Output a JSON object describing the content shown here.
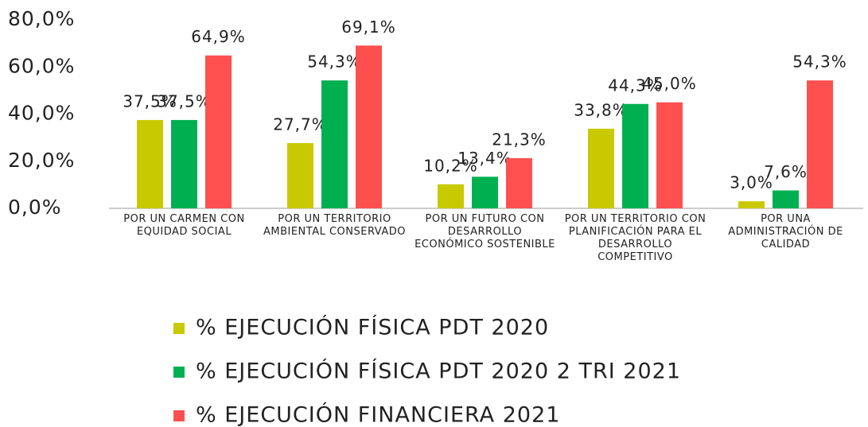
{
  "chart_data": {
    "type": "bar",
    "categories": [
      "POR UN CARMEN CON EQUIDAD SOCIAL",
      "POR UN TERRITORIO AMBIENTAL CONSERVADO",
      "POR UN FUTURO CON DESARROLLO ECONÓMICO SOSTENIBLE",
      "POR UN TERRITORIO CON PLANIFICACIÓN PARA EL DESARROLLO COMPETITIVO",
      "POR UNA ADMINISTRACIÓN DE CALIDAD"
    ],
    "series": [
      {
        "name": "% EJECUCIÓN FÍSICA PDT 2020",
        "color": "#c9c900",
        "values": [
          37.5,
          27.7,
          10.2,
          33.8,
          3.0
        ],
        "value_labels": [
          "37,5%",
          "27,7%",
          "10,2%",
          "33,8%",
          "3,0%"
        ]
      },
      {
        "name": "% EJECUCIÓN FÍSICA PDT 2020 2 TRI 2021",
        "color": "#00b050",
        "values": [
          37.5,
          54.3,
          13.4,
          44.3,
          7.6
        ],
        "value_labels": [
          "37,5%",
          "54,3%",
          "13,4%",
          "44,3%",
          "7,6%"
        ]
      },
      {
        "name": "% EJECUCIÓN FINANCIERA 2021",
        "color": "#ff5050",
        "values": [
          64.9,
          69.1,
          21.3,
          45.0,
          54.3
        ],
        "value_labels": [
          "64,9%",
          "69,1%",
          "21,3%",
          "45,0%",
          "54,3%"
        ]
      }
    ],
    "ylim": [
      0,
      80
    ],
    "yticks": [
      {
        "value": 0,
        "label": "0,0%"
      },
      {
        "value": 20,
        "label": "20,0%"
      },
      {
        "value": 40,
        "label": "40,0%"
      },
      {
        "value": 60,
        "label": "60,0%"
      },
      {
        "value": 80,
        "label": "80,0%"
      }
    ],
    "grid": false,
    "legend": "bottom"
  }
}
